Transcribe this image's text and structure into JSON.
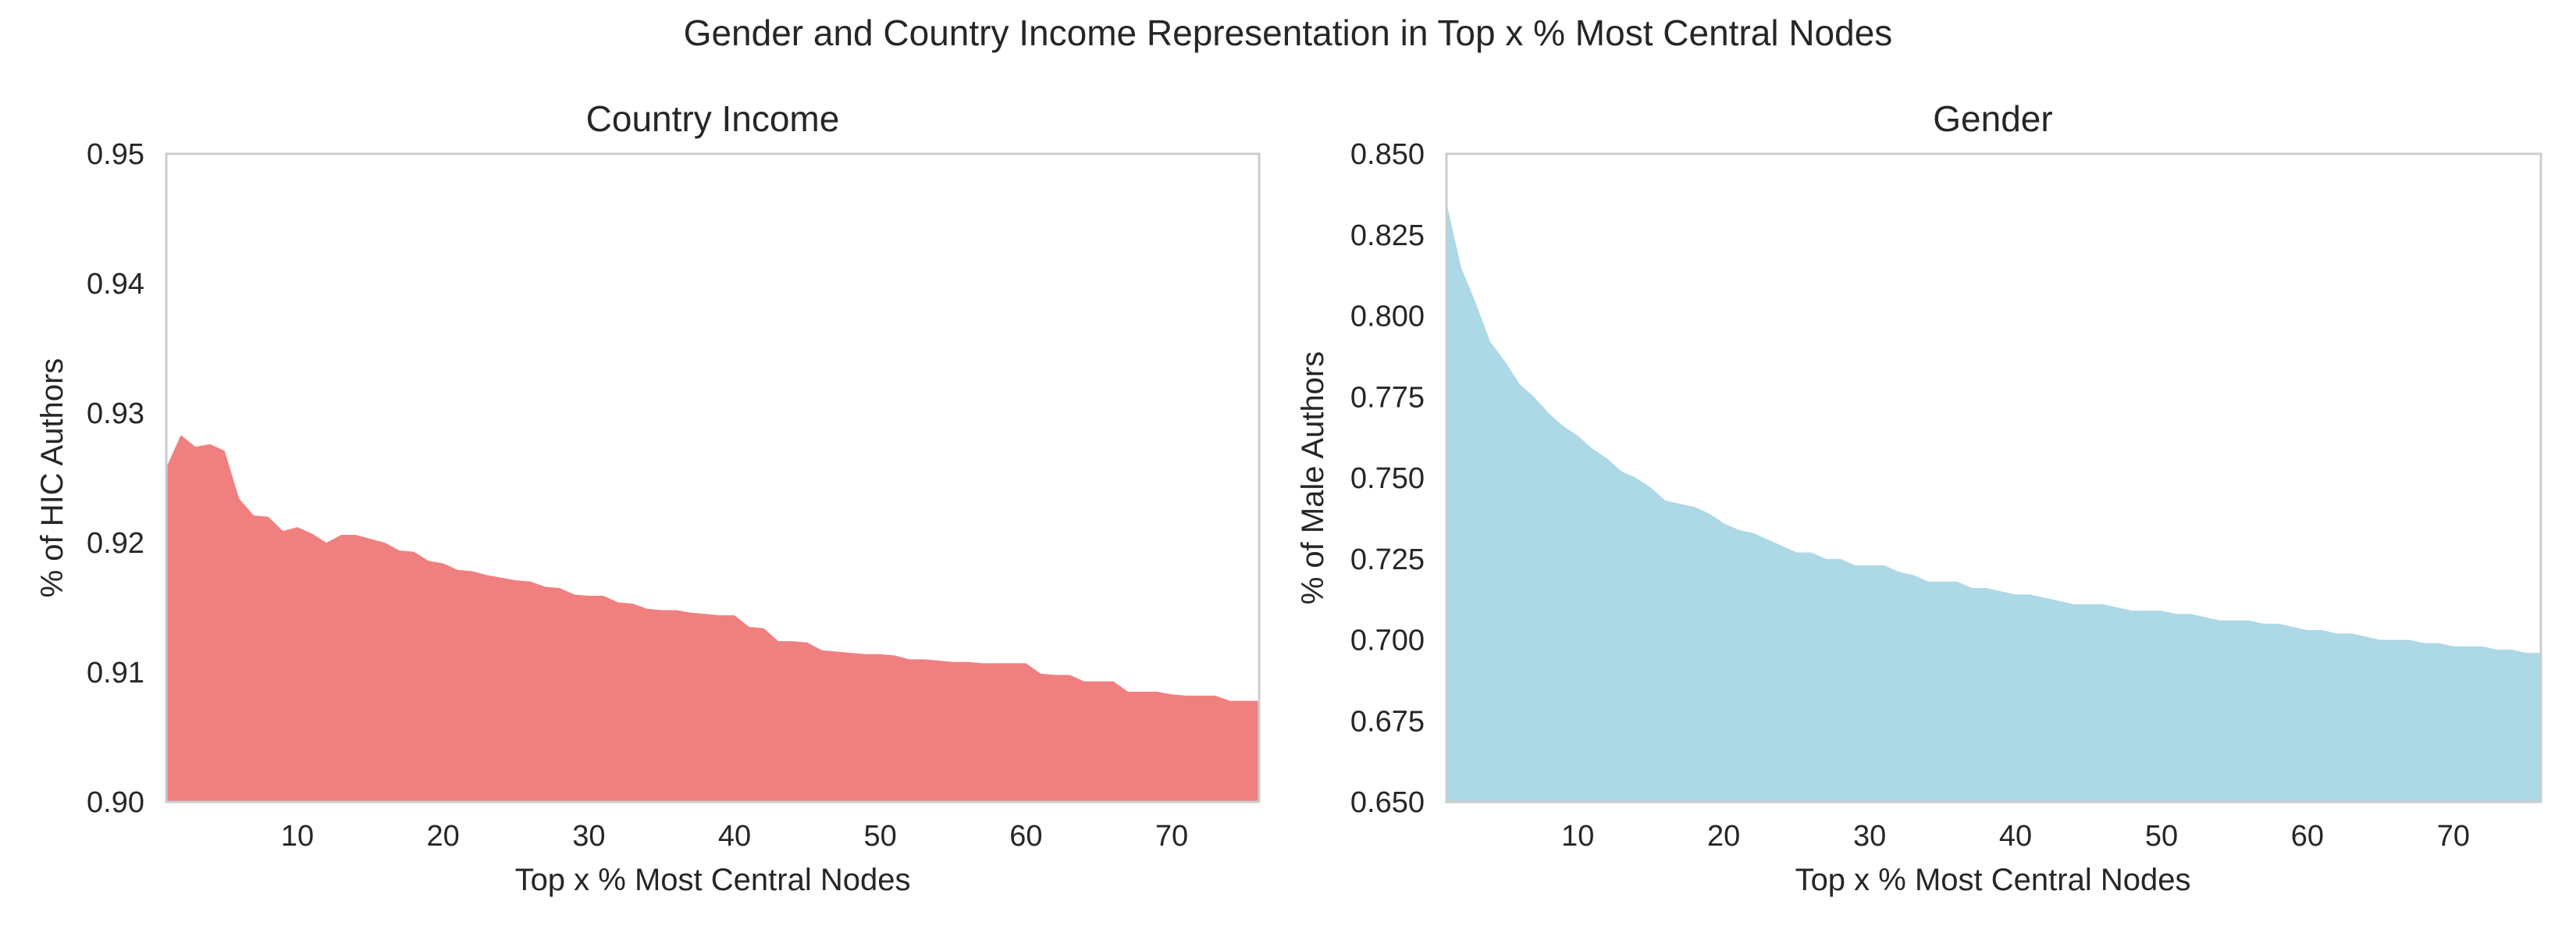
{
  "figure": {
    "title": "Gender and Country Income Representation in Top x % Most Central Nodes"
  },
  "chart_data": [
    {
      "type": "area",
      "title": "Country Income",
      "xlabel": "Top x % Most Central Nodes",
      "ylabel": "% of HIC Authors",
      "xlim": [
        1,
        76
      ],
      "ylim": [
        0.9,
        0.95
      ],
      "x_ticks": [
        "10",
        "20",
        "30",
        "40",
        "50",
        "60",
        "70"
      ],
      "y_ticks": [
        "0.90",
        "0.91",
        "0.92",
        "0.93",
        "0.94",
        "0.95"
      ],
      "grid": false,
      "color": "#F08080",
      "series": [
        {
          "x": [
            1,
            2,
            3,
            4,
            5,
            6,
            7,
            8,
            9,
            10,
            11,
            12,
            13,
            14,
            15,
            16,
            17,
            18,
            19,
            20,
            21,
            22,
            23,
            24,
            25,
            26,
            27,
            28,
            29,
            30,
            31,
            32,
            33,
            34,
            35,
            36,
            37,
            38,
            39,
            40,
            41,
            42,
            43,
            44,
            45,
            46,
            47,
            48,
            49,
            50,
            51,
            52,
            53,
            54,
            55,
            56,
            57,
            58,
            59,
            60,
            61,
            62,
            63,
            64,
            65,
            66,
            67,
            68,
            69,
            70,
            71,
            72,
            73,
            74,
            75,
            76
          ],
          "values": [
            0.9258,
            0.9283,
            0.9274,
            0.9276,
            0.9271,
            0.9234,
            0.9221,
            0.922,
            0.9209,
            0.9212,
            0.9207,
            0.92,
            0.9206,
            0.9206,
            0.9203,
            0.92,
            0.9194,
            0.9193,
            0.9186,
            0.9184,
            0.9179,
            0.9178,
            0.9175,
            0.9173,
            0.9171,
            0.917,
            0.9166,
            0.9165,
            0.916,
            0.9159,
            0.9159,
            0.9154,
            0.9153,
            0.9149,
            0.9148,
            0.9148,
            0.9146,
            0.9145,
            0.9144,
            0.9144,
            0.9135,
            0.9134,
            0.9124,
            0.9124,
            0.9123,
            0.9117,
            0.9116,
            0.9115,
            0.9114,
            0.9114,
            0.9113,
            0.911,
            0.911,
            0.9109,
            0.9108,
            0.9108,
            0.9107,
            0.9107,
            0.9107,
            0.9107,
            0.9099,
            0.9098,
            0.9098,
            0.9093,
            0.9093,
            0.9093,
            0.9085,
            0.9085,
            0.9085,
            0.9083,
            0.9082,
            0.9082,
            0.9082,
            0.9078,
            0.9078,
            0.9078
          ]
        }
      ]
    },
    {
      "type": "area",
      "title": "Gender",
      "xlabel": "Top x % Most Central Nodes",
      "ylabel": "% of Male Authors",
      "xlim": [
        1,
        76
      ],
      "ylim": [
        0.65,
        0.85
      ],
      "x_ticks": [
        "10",
        "20",
        "30",
        "40",
        "50",
        "60",
        "70"
      ],
      "y_ticks": [
        "0.650",
        "0.675",
        "0.700",
        "0.725",
        "0.750",
        "0.775",
        "0.800",
        "0.825",
        "0.850"
      ],
      "grid": false,
      "color": "#ADD8E6",
      "series": [
        {
          "x": [
            1,
            2,
            3,
            4,
            5,
            6,
            7,
            8,
            9,
            10,
            11,
            12,
            13,
            14,
            15,
            16,
            17,
            18,
            19,
            20,
            21,
            22,
            23,
            24,
            25,
            26,
            27,
            28,
            29,
            30,
            31,
            32,
            33,
            34,
            35,
            36,
            37,
            38,
            39,
            40,
            41,
            42,
            43,
            44,
            45,
            46,
            47,
            48,
            49,
            50,
            51,
            52,
            53,
            54,
            55,
            56,
            57,
            58,
            59,
            60,
            61,
            62,
            63,
            64,
            65,
            66,
            67,
            68,
            69,
            70,
            71,
            72,
            73,
            74,
            75,
            76
          ],
          "values": [
            0.835,
            0.815,
            0.804,
            0.792,
            0.786,
            0.779,
            0.775,
            0.77,
            0.766,
            0.763,
            0.759,
            0.756,
            0.752,
            0.75,
            0.747,
            0.743,
            0.742,
            0.741,
            0.739,
            0.736,
            0.734,
            0.733,
            0.731,
            0.729,
            0.727,
            0.727,
            0.725,
            0.725,
            0.723,
            0.723,
            0.723,
            0.721,
            0.72,
            0.718,
            0.718,
            0.718,
            0.716,
            0.716,
            0.715,
            0.714,
            0.714,
            0.713,
            0.712,
            0.711,
            0.711,
            0.711,
            0.71,
            0.709,
            0.709,
            0.709,
            0.708,
            0.708,
            0.707,
            0.706,
            0.706,
            0.706,
            0.705,
            0.705,
            0.704,
            0.703,
            0.703,
            0.702,
            0.702,
            0.701,
            0.7,
            0.7,
            0.7,
            0.699,
            0.699,
            0.698,
            0.698,
            0.698,
            0.697,
            0.697,
            0.696,
            0.696
          ]
        }
      ]
    }
  ]
}
